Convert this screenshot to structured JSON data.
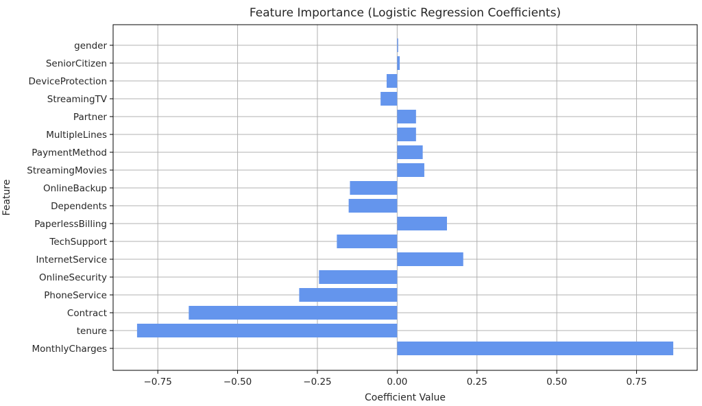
{
  "chart_data": {
    "type": "bar",
    "orientation": "horizontal",
    "title": "Feature Importance (Logistic Regression Coefficients)",
    "xlabel": "Coefficient Value",
    "ylabel": "Feature",
    "xlim": [
      -0.89,
      0.94
    ],
    "xticks": [
      -0.75,
      -0.5,
      -0.25,
      0.0,
      0.25,
      0.5,
      0.75
    ],
    "xtick_labels": [
      "−0.75",
      "−0.50",
      "−0.25",
      "0.00",
      "0.25",
      "0.50",
      "0.75"
    ],
    "grid": true,
    "bar_color": "#6495ed",
    "categories": [
      "gender",
      "SeniorCitizen",
      "DeviceProtection",
      "StreamingTV",
      "Partner",
      "MultipleLines",
      "PaymentMethod",
      "StreamingMovies",
      "OnlineBackup",
      "Dependents",
      "PaperlessBilling",
      "TechSupport",
      "InternetService",
      "OnlineSecurity",
      "PhoneService",
      "Contract",
      "tenure",
      "MonthlyCharges"
    ],
    "values": [
      0.003,
      0.008,
      -0.033,
      -0.052,
      0.059,
      0.059,
      0.08,
      0.085,
      -0.148,
      -0.152,
      0.156,
      -0.189,
      0.207,
      -0.245,
      -0.307,
      -0.653,
      -0.815,
      0.865
    ]
  }
}
